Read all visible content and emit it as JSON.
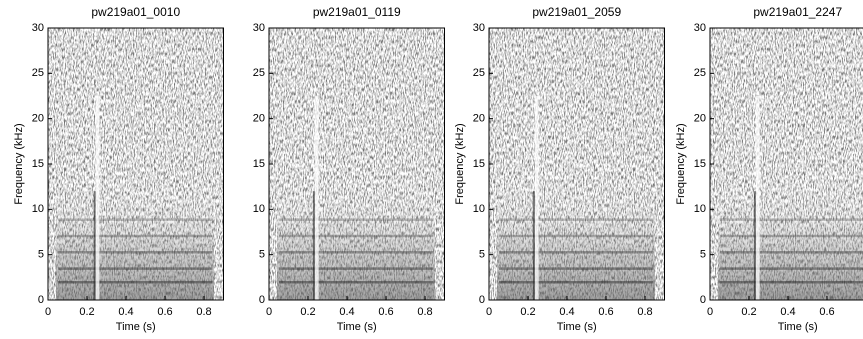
{
  "chart_data": [
    {
      "type": "spectrogram",
      "title": "pw219a01_0010",
      "xlabel": "Time (s)",
      "ylabel": "Frequency (kHz)",
      "xlim": [
        0,
        0.9
      ],
      "ylim": [
        0,
        30
      ],
      "xticks": [
        0,
        0.2,
        0.4,
        0.6,
        0.8
      ],
      "yticks": [
        0,
        5,
        10,
        15,
        20,
        25,
        30
      ]
    },
    {
      "type": "spectrogram",
      "title": "pw219a01_0119",
      "xlabel": "Time (s)",
      "xlim": [
        0,
        0.9
      ],
      "ylim": [
        0,
        30
      ],
      "xticks": [
        0,
        0.2,
        0.4,
        0.6,
        0.8
      ],
      "yticks": [
        0,
        5,
        10,
        15,
        20,
        25,
        30
      ]
    },
    {
      "type": "spectrogram",
      "title": "pw219a01_2059",
      "xlabel": "Time (s)",
      "ylabel": "Frequency (kHz)",
      "xlim": [
        0,
        0.9
      ],
      "ylim": [
        0,
        30
      ],
      "xticks": [
        0,
        0.2,
        0.4,
        0.6,
        0.8
      ],
      "yticks": [
        0,
        5,
        10,
        15,
        20,
        25,
        30
      ]
    },
    {
      "type": "spectrogram",
      "title": "pw219a01_2247",
      "xlabel": "Time (s)",
      "ylabel": "Frequency (kHz)",
      "xlim": [
        0,
        0.9
      ],
      "ylim": [
        0,
        30
      ],
      "xticks": [
        0,
        0.2,
        0.4,
        0.6
      ],
      "yticks": [
        0,
        5,
        10,
        15,
        20,
        25,
        30
      ]
    }
  ]
}
